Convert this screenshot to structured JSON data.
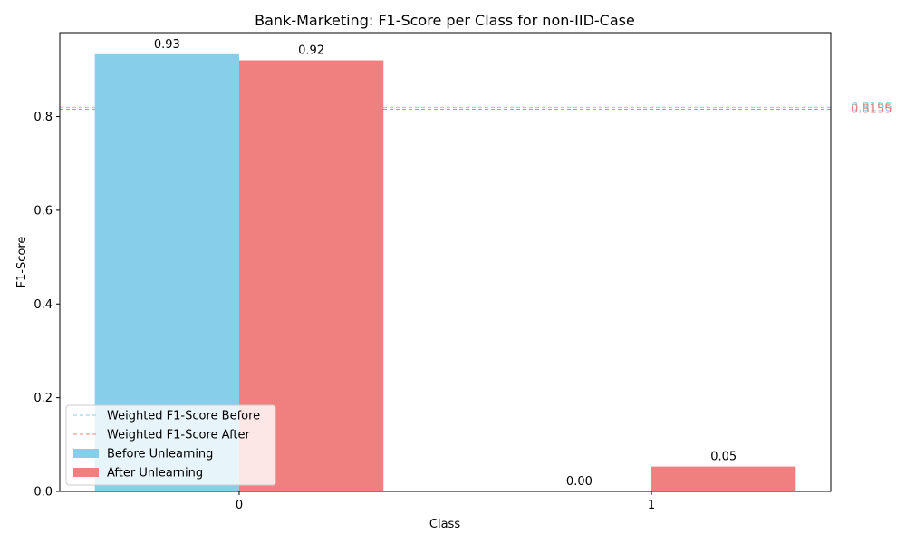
{
  "chart_data": {
    "type": "bar",
    "title": "Bank-Marketing: F1-Score per Class for non-IID-Case",
    "xlabel": "Class",
    "ylabel": "F1-Score",
    "categories": [
      "0",
      "1"
    ],
    "ylim": [
      0,
      0.979
    ],
    "yticks": [
      0.0,
      0.2,
      0.4,
      0.6,
      0.8
    ],
    "ytick_labels": [
      "0.0",
      "0.2",
      "0.4",
      "0.6",
      "0.8"
    ],
    "series": [
      {
        "name": "Before Unlearning",
        "color": "#87ceeb",
        "values": [
          0.933,
          0.0
        ],
        "value_labels": [
          "0.93",
          "0.00"
        ]
      },
      {
        "name": "After Unlearning",
        "color": "#f08080",
        "values": [
          0.92,
          0.053
        ],
        "value_labels": [
          "0.92",
          "0.05"
        ]
      }
    ],
    "reference_lines": [
      {
        "name": "Weighted F1-Score Before",
        "value": 0.8196,
        "label": "0.8196",
        "color": "#87ceeb",
        "style": "dashed"
      },
      {
        "name": "Weighted F1-Score After",
        "value": 0.8155,
        "label": "0.8155",
        "color": "#f08080",
        "style": "dashed"
      }
    ],
    "legend": {
      "placement": "lower-left",
      "entries": [
        {
          "label": "Weighted F1-Score Before",
          "kind": "line",
          "color": "#87ceeb"
        },
        {
          "label": "Weighted F1-Score After",
          "kind": "line",
          "color": "#f08080"
        },
        {
          "label": "Before Unlearning",
          "kind": "patch",
          "color": "#87ceeb"
        },
        {
          "label": "After Unlearning",
          "kind": "patch",
          "color": "#f08080"
        }
      ]
    },
    "grid": false
  }
}
